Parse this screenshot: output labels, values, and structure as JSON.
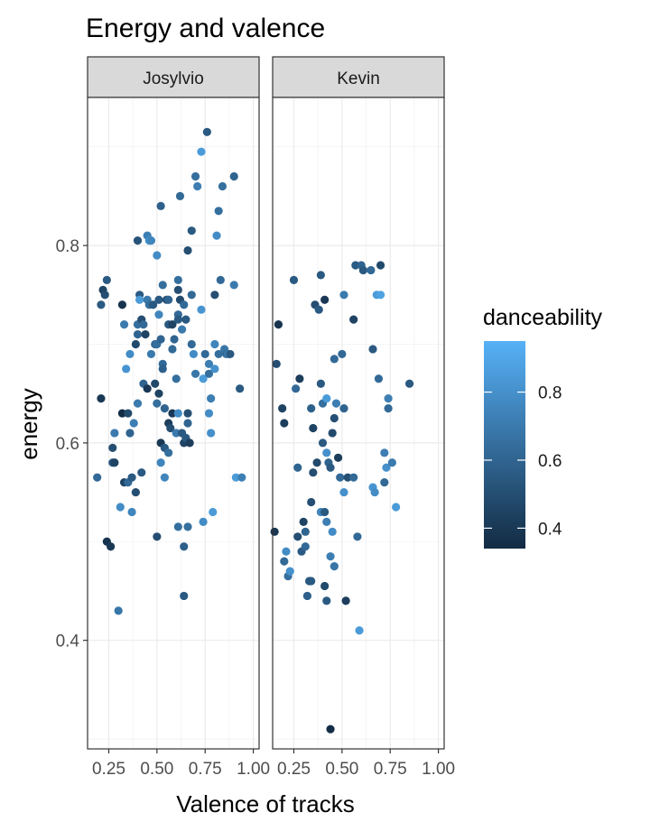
{
  "chart_data": {
    "type": "scatter",
    "title": "Energy and valence",
    "xlabel": "Valence of tracks",
    "ylabel": "energy",
    "xlim": [
      0.14,
      1.03
    ],
    "ylim": [
      0.29,
      0.95
    ],
    "x_ticks": [
      0.25,
      0.5,
      0.75,
      1.0
    ],
    "x_tick_labels": [
      "0.25",
      "0.50",
      "0.75",
      "1.00"
    ],
    "y_ticks": [
      0.4,
      0.6,
      0.8
    ],
    "y_tick_labels": [
      "0.4",
      "0.6",
      "0.8"
    ],
    "grid": true,
    "color_scale": {
      "title": "danceability",
      "low_color": "#132B43",
      "high_color": "#56B1F7",
      "range": [
        0.34,
        0.95
      ],
      "ticks": [
        0.4,
        0.6,
        0.8
      ],
      "tick_labels": [
        "0.4",
        "0.6",
        "0.8"
      ],
      "legend_position": "right"
    },
    "panels": [
      {
        "name": "Josylvio",
        "points": [
          [
            0.19,
            0.565,
            0.62
          ],
          [
            0.21,
            0.645,
            0.4
          ],
          [
            0.21,
            0.74,
            0.55
          ],
          [
            0.22,
            0.755,
            0.45
          ],
          [
            0.23,
            0.75,
            0.5
          ],
          [
            0.24,
            0.765,
            0.55
          ],
          [
            0.24,
            0.5,
            0.38
          ],
          [
            0.26,
            0.495,
            0.4
          ],
          [
            0.27,
            0.595,
            0.5
          ],
          [
            0.27,
            0.58,
            0.55
          ],
          [
            0.28,
            0.61,
            0.7
          ],
          [
            0.28,
            0.58,
            0.45
          ],
          [
            0.3,
            0.43,
            0.68
          ],
          [
            0.31,
            0.535,
            0.78
          ],
          [
            0.32,
            0.74,
            0.38
          ],
          [
            0.32,
            0.63,
            0.35
          ],
          [
            0.33,
            0.72,
            0.7
          ],
          [
            0.33,
            0.56,
            0.45
          ],
          [
            0.34,
            0.675,
            0.82
          ],
          [
            0.35,
            0.63,
            0.48
          ],
          [
            0.35,
            0.56,
            0.62
          ],
          [
            0.36,
            0.69,
            0.78
          ],
          [
            0.36,
            0.61,
            0.6
          ],
          [
            0.37,
            0.53,
            0.75
          ],
          [
            0.37,
            0.565,
            0.55
          ],
          [
            0.38,
            0.62,
            0.72
          ],
          [
            0.39,
            0.7,
            0.48
          ],
          [
            0.39,
            0.55,
            0.5
          ],
          [
            0.4,
            0.805,
            0.52
          ],
          [
            0.4,
            0.72,
            0.65
          ],
          [
            0.4,
            0.71,
            0.6
          ],
          [
            0.4,
            0.64,
            0.7
          ],
          [
            0.41,
            0.75,
            0.55
          ],
          [
            0.41,
            0.745,
            0.85
          ],
          [
            0.42,
            0.725,
            0.5
          ],
          [
            0.42,
            0.57,
            0.55
          ],
          [
            0.43,
            0.72,
            0.62
          ],
          [
            0.43,
            0.66,
            0.6
          ],
          [
            0.44,
            0.71,
            0.45
          ],
          [
            0.45,
            0.81,
            0.72
          ],
          [
            0.45,
            0.745,
            0.7
          ],
          [
            0.45,
            0.655,
            0.4
          ],
          [
            0.46,
            0.805,
            0.8
          ],
          [
            0.46,
            0.74,
            0.65
          ],
          [
            0.47,
            0.805,
            0.75
          ],
          [
            0.47,
            0.69,
            0.7
          ],
          [
            0.48,
            0.74,
            0.55
          ],
          [
            0.49,
            0.7,
            0.62
          ],
          [
            0.49,
            0.66,
            0.48
          ],
          [
            0.5,
            0.79,
            0.78
          ],
          [
            0.5,
            0.7,
            0.65
          ],
          [
            0.5,
            0.64,
            0.65
          ],
          [
            0.5,
            0.505,
            0.5
          ],
          [
            0.51,
            0.745,
            0.55
          ],
          [
            0.51,
            0.73,
            0.75
          ],
          [
            0.51,
            0.65,
            0.45
          ],
          [
            0.52,
            0.84,
            0.58
          ],
          [
            0.52,
            0.705,
            0.6
          ],
          [
            0.52,
            0.6,
            0.4
          ],
          [
            0.52,
            0.58,
            0.75
          ],
          [
            0.53,
            0.76,
            0.65
          ],
          [
            0.53,
            0.68,
            0.62
          ],
          [
            0.53,
            0.675,
            0.58
          ],
          [
            0.54,
            0.635,
            0.6
          ],
          [
            0.54,
            0.595,
            0.55
          ],
          [
            0.54,
            0.565,
            0.75
          ],
          [
            0.55,
            0.745,
            0.5
          ],
          [
            0.56,
            0.745,
            0.6
          ],
          [
            0.56,
            0.72,
            0.55
          ],
          [
            0.56,
            0.62,
            0.42
          ],
          [
            0.56,
            0.59,
            0.65
          ],
          [
            0.57,
            0.615,
            0.5
          ],
          [
            0.58,
            0.72,
            0.45
          ],
          [
            0.58,
            0.695,
            0.62
          ],
          [
            0.58,
            0.63,
            0.4
          ],
          [
            0.59,
            0.705,
            0.6
          ],
          [
            0.6,
            0.665,
            0.65
          ],
          [
            0.6,
            0.61,
            0.7
          ],
          [
            0.61,
            0.765,
            0.65
          ],
          [
            0.61,
            0.755,
            0.5
          ],
          [
            0.61,
            0.73,
            0.62
          ],
          [
            0.61,
            0.725,
            0.55
          ],
          [
            0.61,
            0.63,
            0.78
          ],
          [
            0.61,
            0.515,
            0.65
          ],
          [
            0.62,
            0.85,
            0.62
          ],
          [
            0.62,
            0.745,
            0.48
          ],
          [
            0.63,
            0.715,
            0.7
          ],
          [
            0.63,
            0.61,
            0.55
          ],
          [
            0.64,
            0.74,
            0.62
          ],
          [
            0.64,
            0.6,
            0.45
          ],
          [
            0.64,
            0.445,
            0.55
          ],
          [
            0.64,
            0.495,
            0.58
          ],
          [
            0.65,
            0.725,
            0.55
          ],
          [
            0.65,
            0.605,
            0.55
          ],
          [
            0.66,
            0.795,
            0.5
          ],
          [
            0.66,
            0.63,
            0.5
          ],
          [
            0.66,
            0.62,
            0.6
          ],
          [
            0.66,
            0.515,
            0.65
          ],
          [
            0.67,
            0.6,
            0.42
          ],
          [
            0.68,
            0.815,
            0.55
          ],
          [
            0.68,
            0.75,
            0.62
          ],
          [
            0.68,
            0.7,
            0.62
          ],
          [
            0.69,
            0.69,
            0.78
          ],
          [
            0.7,
            0.87,
            0.65
          ],
          [
            0.7,
            0.67,
            0.68
          ],
          [
            0.71,
            0.86,
            0.72
          ],
          [
            0.73,
            0.895,
            0.85
          ],
          [
            0.73,
            0.735,
            0.82
          ],
          [
            0.74,
            0.665,
            0.85
          ],
          [
            0.74,
            0.52,
            0.78
          ],
          [
            0.75,
            0.69,
            0.62
          ],
          [
            0.76,
            0.915,
            0.55
          ],
          [
            0.77,
            0.68,
            0.72
          ],
          [
            0.77,
            0.67,
            0.65
          ],
          [
            0.77,
            0.63,
            0.78
          ],
          [
            0.78,
            0.645,
            0.72
          ],
          [
            0.78,
            0.61,
            0.8
          ],
          [
            0.79,
            0.53,
            0.85
          ],
          [
            0.8,
            0.75,
            0.5
          ],
          [
            0.8,
            0.7,
            0.75
          ],
          [
            0.8,
            0.675,
            0.8
          ],
          [
            0.81,
            0.81,
            0.78
          ],
          [
            0.82,
            0.835,
            0.65
          ],
          [
            0.82,
            0.69,
            0.65
          ],
          [
            0.83,
            0.765,
            0.62
          ],
          [
            0.84,
            0.86,
            0.65
          ],
          [
            0.85,
            0.695,
            0.68
          ],
          [
            0.86,
            0.69,
            0.62
          ],
          [
            0.87,
            0.69,
            0.7
          ],
          [
            0.88,
            0.69,
            0.55
          ],
          [
            0.9,
            0.87,
            0.6
          ],
          [
            0.9,
            0.76,
            0.7
          ],
          [
            0.91,
            0.565,
            0.85
          ],
          [
            0.93,
            0.655,
            0.55
          ],
          [
            0.94,
            0.565,
            0.72
          ]
        ]
      },
      {
        "name": "Kevin",
        "points": [
          [
            0.15,
            0.51,
            0.4
          ],
          [
            0.16,
            0.68,
            0.5
          ],
          [
            0.17,
            0.72,
            0.38
          ],
          [
            0.19,
            0.635,
            0.45
          ],
          [
            0.2,
            0.62,
            0.42
          ],
          [
            0.2,
            0.48,
            0.62
          ],
          [
            0.21,
            0.49,
            0.78
          ],
          [
            0.22,
            0.465,
            0.65
          ],
          [
            0.23,
            0.47,
            0.8
          ],
          [
            0.25,
            0.765,
            0.55
          ],
          [
            0.26,
            0.655,
            0.62
          ],
          [
            0.27,
            0.505,
            0.5
          ],
          [
            0.27,
            0.575,
            0.6
          ],
          [
            0.28,
            0.665,
            0.42
          ],
          [
            0.29,
            0.49,
            0.55
          ],
          [
            0.3,
            0.52,
            0.45
          ],
          [
            0.31,
            0.51,
            0.6
          ],
          [
            0.31,
            0.495,
            0.62
          ],
          [
            0.32,
            0.445,
            0.58
          ],
          [
            0.33,
            0.46,
            0.55
          ],
          [
            0.34,
            0.46,
            0.55
          ],
          [
            0.34,
            0.54,
            0.5
          ],
          [
            0.34,
            0.635,
            0.58
          ],
          [
            0.35,
            0.57,
            0.5
          ],
          [
            0.35,
            0.615,
            0.45
          ],
          [
            0.36,
            0.74,
            0.5
          ],
          [
            0.37,
            0.58,
            0.48
          ],
          [
            0.38,
            0.735,
            0.55
          ],
          [
            0.39,
            0.53,
            0.75
          ],
          [
            0.39,
            0.77,
            0.55
          ],
          [
            0.39,
            0.66,
            0.55
          ],
          [
            0.4,
            0.64,
            0.65
          ],
          [
            0.4,
            0.6,
            0.55
          ],
          [
            0.41,
            0.53,
            0.55
          ],
          [
            0.41,
            0.455,
            0.48
          ],
          [
            0.41,
            0.745,
            0.4
          ],
          [
            0.42,
            0.59,
            0.8
          ],
          [
            0.42,
            0.645,
            0.85
          ],
          [
            0.42,
            0.44,
            0.55
          ],
          [
            0.42,
            0.52,
            0.72
          ],
          [
            0.43,
            0.58,
            0.6
          ],
          [
            0.44,
            0.31,
            0.35
          ],
          [
            0.44,
            0.485,
            0.72
          ],
          [
            0.44,
            0.575,
            0.55
          ],
          [
            0.45,
            0.51,
            0.78
          ],
          [
            0.45,
            0.61,
            0.48
          ],
          [
            0.46,
            0.685,
            0.62
          ],
          [
            0.46,
            0.625,
            0.5
          ],
          [
            0.46,
            0.475,
            0.68
          ],
          [
            0.47,
            0.64,
            0.72
          ],
          [
            0.48,
            0.585,
            0.42
          ],
          [
            0.49,
            0.565,
            0.62
          ],
          [
            0.5,
            0.69,
            0.62
          ],
          [
            0.51,
            0.75,
            0.7
          ],
          [
            0.51,
            0.55,
            0.8
          ],
          [
            0.51,
            0.635,
            0.6
          ],
          [
            0.52,
            0.44,
            0.42
          ],
          [
            0.53,
            0.565,
            0.5
          ],
          [
            0.56,
            0.565,
            0.62
          ],
          [
            0.56,
            0.725,
            0.45
          ],
          [
            0.57,
            0.78,
            0.55
          ],
          [
            0.58,
            0.505,
            0.62
          ],
          [
            0.59,
            0.41,
            0.85
          ],
          [
            0.6,
            0.78,
            0.6
          ],
          [
            0.61,
            0.775,
            0.55
          ],
          [
            0.65,
            0.775,
            0.62
          ],
          [
            0.66,
            0.695,
            0.55
          ],
          [
            0.66,
            0.555,
            0.82
          ],
          [
            0.67,
            0.55,
            0.78
          ],
          [
            0.68,
            0.75,
            0.85
          ],
          [
            0.69,
            0.665,
            0.62
          ],
          [
            0.7,
            0.78,
            0.48
          ],
          [
            0.7,
            0.75,
            0.88
          ],
          [
            0.72,
            0.59,
            0.72
          ],
          [
            0.72,
            0.56,
            0.62
          ],
          [
            0.73,
            0.575,
            0.8
          ],
          [
            0.74,
            0.645,
            0.72
          ],
          [
            0.74,
            0.635,
            0.62
          ],
          [
            0.76,
            0.58,
            0.7
          ],
          [
            0.78,
            0.535,
            0.85
          ],
          [
            0.85,
            0.66,
            0.55
          ]
        ]
      }
    ]
  }
}
